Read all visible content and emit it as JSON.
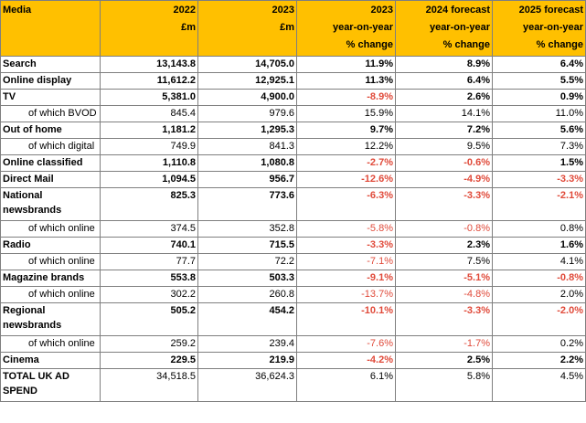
{
  "headers": [
    [
      "Media",
      ""
    ],
    [
      "2022",
      "£m"
    ],
    [
      "2023",
      "£m"
    ],
    [
      "2023",
      "year-on-year",
      "% change"
    ],
    [
      "2024 forecast",
      "year-on-year",
      "% change"
    ],
    [
      "2025 forecast",
      "year-on-year",
      "% change"
    ]
  ],
  "rows": [
    {
      "label": "Search",
      "v2022": "13,143.8",
      "v2023": "14,705.0",
      "c2023": "11.9%",
      "c2024": "8.9%",
      "c2025": "6.4%",
      "kind": "main"
    },
    {
      "label": "Online display",
      "v2022": "11,612.2",
      "v2023": "12,925.1",
      "c2023": "11.3%",
      "c2024": "6.4%",
      "c2025": "5.5%",
      "kind": "main"
    },
    {
      "label": "TV",
      "v2022": "5,381.0",
      "v2023": "4,900.0",
      "c2023": "-8.9%",
      "c2024": "2.6%",
      "c2025": "0.9%",
      "kind": "main"
    },
    {
      "label": "of which BVOD",
      "v2022": "845.4",
      "v2023": "979.6",
      "c2023": "15.9%",
      "c2024": "14.1%",
      "c2025": "11.0%",
      "kind": "sub"
    },
    {
      "label": "Out of home",
      "v2022": "1,181.2",
      "v2023": "1,295.3",
      "c2023": "9.7%",
      "c2024": "7.2%",
      "c2025": "5.6%",
      "kind": "main"
    },
    {
      "label": "of which digital",
      "v2022": "749.9",
      "v2023": "841.3",
      "c2023": "12.2%",
      "c2024": "9.5%",
      "c2025": "7.3%",
      "kind": "sub"
    },
    {
      "label": "Online classified",
      "v2022": "1,110.8",
      "v2023": "1,080.8",
      "c2023": "-2.7%",
      "c2024": "-0.6%",
      "c2025": "1.5%",
      "kind": "main"
    },
    {
      "label": "Direct Mail",
      "v2022": "1,094.5",
      "v2023": "956.7",
      "c2023": "-12.6%",
      "c2024": "-4.9%",
      "c2025": "-3.3%",
      "kind": "main"
    },
    {
      "label": "National newsbrands",
      "v2022": "825.3",
      "v2023": "773.6",
      "c2023": "-6.3%",
      "c2024": "-3.3%",
      "c2025": "-2.1%",
      "kind": "main-tall"
    },
    {
      "label": "of which online",
      "v2022": "374.5",
      "v2023": "352.8",
      "c2023": "-5.8%",
      "c2024": "-0.8%",
      "c2025": "0.8%",
      "kind": "sub"
    },
    {
      "label": "Radio",
      "v2022": "740.1",
      "v2023": "715.5",
      "c2023": "-3.3%",
      "c2024": "2.3%",
      "c2025": "1.6%",
      "kind": "main"
    },
    {
      "label": "of which online",
      "v2022": "77.7",
      "v2023": "72.2",
      "c2023": "-7.1%",
      "c2024": "7.5%",
      "c2025": "4.1%",
      "kind": "sub"
    },
    {
      "label": "Magazine brands",
      "v2022": "553.8",
      "v2023": "503.3",
      "c2023": "-9.1%",
      "c2024": "-5.1%",
      "c2025": "-0.8%",
      "kind": "main"
    },
    {
      "label": "of which online",
      "v2022": "302.2",
      "v2023": "260.8",
      "c2023": "-13.7%",
      "c2024": "-4.8%",
      "c2025": "2.0%",
      "kind": "sub"
    },
    {
      "label": "Regional newsbrands",
      "v2022": "505.2",
      "v2023": "454.2",
      "c2023": "-10.1%",
      "c2024": "-3.3%",
      "c2025": "-2.0%",
      "kind": "main-tall"
    },
    {
      "label": "of which online",
      "v2022": "259.2",
      "v2023": "239.4",
      "c2023": "-7.6%",
      "c2024": "-1.7%",
      "c2025": "0.2%",
      "kind": "sub"
    },
    {
      "label": "Cinema",
      "v2022": "229.5",
      "v2023": "219.9",
      "c2023": "-4.2%",
      "c2024": "2.5%",
      "c2025": "2.2%",
      "kind": "main"
    },
    {
      "label": "TOTAL UK AD SPEND",
      "v2022": "34,518.5",
      "v2023": "36,624.3",
      "c2023": "6.1%",
      "c2024": "5.8%",
      "c2025": "4.5%",
      "kind": "total"
    }
  ],
  "colors": {
    "header_bg": "#ffc000",
    "negative": "#e04a3a",
    "border": "#7f7f7f"
  }
}
